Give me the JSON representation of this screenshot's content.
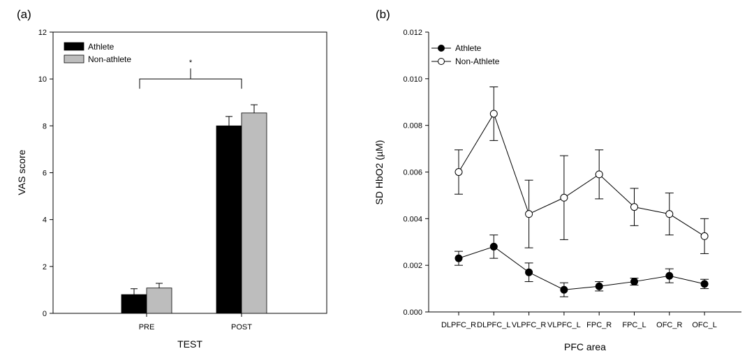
{
  "chart_data": [
    {
      "panel_label": "(a)",
      "type": "bar",
      "xlabel": "TEST",
      "ylabel": "VAS score",
      "ylim": [
        0,
        12
      ],
      "yticks": [
        "0",
        "2",
        "4",
        "6",
        "8",
        "10",
        "12"
      ],
      "categories": [
        "PRE",
        "POST"
      ],
      "series": [
        {
          "name": "Athlete",
          "color": "#000000",
          "values": [
            0.8,
            8.0
          ],
          "errors": [
            0.25,
            0.4
          ]
        },
        {
          "name": "Non-athlete",
          "color": "#bdbdbd",
          "values": [
            1.08,
            8.55
          ],
          "errors": [
            0.2,
            0.35
          ]
        }
      ],
      "significance": {
        "label": "*",
        "between": [
          "PRE",
          "POST"
        ],
        "level": 10.0
      },
      "legend_position": "top-left",
      "grid": false
    },
    {
      "panel_label": "(b)",
      "type": "line",
      "xlabel": "PFC area",
      "ylabel": "SD HbO2 (µM)",
      "ylim": [
        0,
        0.012
      ],
      "yticks": [
        "0.000",
        "0.002",
        "0.004",
        "0.006",
        "0.008",
        "0.010",
        "0.012"
      ],
      "categories": [
        "DLPFC_R",
        "DLPFC_L",
        "VLPFC_R",
        "VLPFC_L",
        "FPC_R",
        "FPC_L",
        "OFC_R",
        "OFC_L"
      ],
      "series": [
        {
          "name": "Athlete",
          "marker": "filled-circle",
          "values": [
            0.0023,
            0.0028,
            0.0017,
            0.00095,
            0.0011,
            0.0013,
            0.00155,
            0.0012
          ],
          "errors": [
            0.0003,
            0.0005,
            0.0004,
            0.0003,
            0.0002,
            0.00015,
            0.0003,
            0.0002
          ]
        },
        {
          "name": "Non-Athlete",
          "marker": "open-circle",
          "values": [
            0.006,
            0.0085,
            0.0042,
            0.0049,
            0.0059,
            0.0045,
            0.0042,
            0.00325
          ],
          "errors": [
            0.00095,
            0.00115,
            0.00145,
            0.0018,
            0.00105,
            0.0008,
            0.0009,
            0.00075
          ]
        }
      ],
      "legend_position": "top-left",
      "grid": false
    }
  ]
}
